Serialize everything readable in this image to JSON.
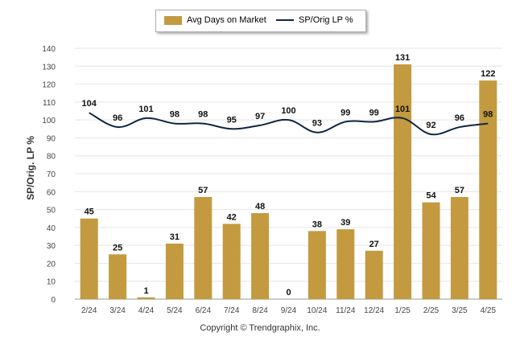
{
  "chart_data": {
    "type": "bar",
    "categories": [
      "2/24",
      "3/24",
      "4/24",
      "5/24",
      "6/24",
      "7/24",
      "8/24",
      "9/24",
      "10/24",
      "11/24",
      "12/24",
      "1/25",
      "2/25",
      "3/25",
      "4/25"
    ],
    "series": [
      {
        "name": "Avg Days on Market",
        "type": "bar",
        "color": "#C39A3F",
        "values": [
          45,
          25,
          1,
          31,
          57,
          42,
          48,
          0,
          38,
          39,
          27,
          131,
          54,
          57,
          122
        ]
      },
      {
        "name": "SP/Orig LP %",
        "type": "line",
        "color": "#0F2742",
        "values": [
          104,
          96,
          101,
          98,
          98,
          95,
          97,
          100,
          93,
          99,
          99,
          101,
          92,
          96,
          98
        ]
      }
    ],
    "ylabel": "SP/Orig. LP %",
    "ylim": [
      0,
      140
    ],
    "yticks": [
      0,
      10,
      20,
      30,
      40,
      50,
      60,
      70,
      80,
      90,
      100,
      110,
      120,
      130,
      140
    ],
    "grid": true,
    "legend": "top-center"
  },
  "legend": {
    "bar_label": "Avg Days on Market",
    "line_label": "SP/Orig LP %"
  },
  "copyright": "Copyright © Trendgraphix, Inc."
}
